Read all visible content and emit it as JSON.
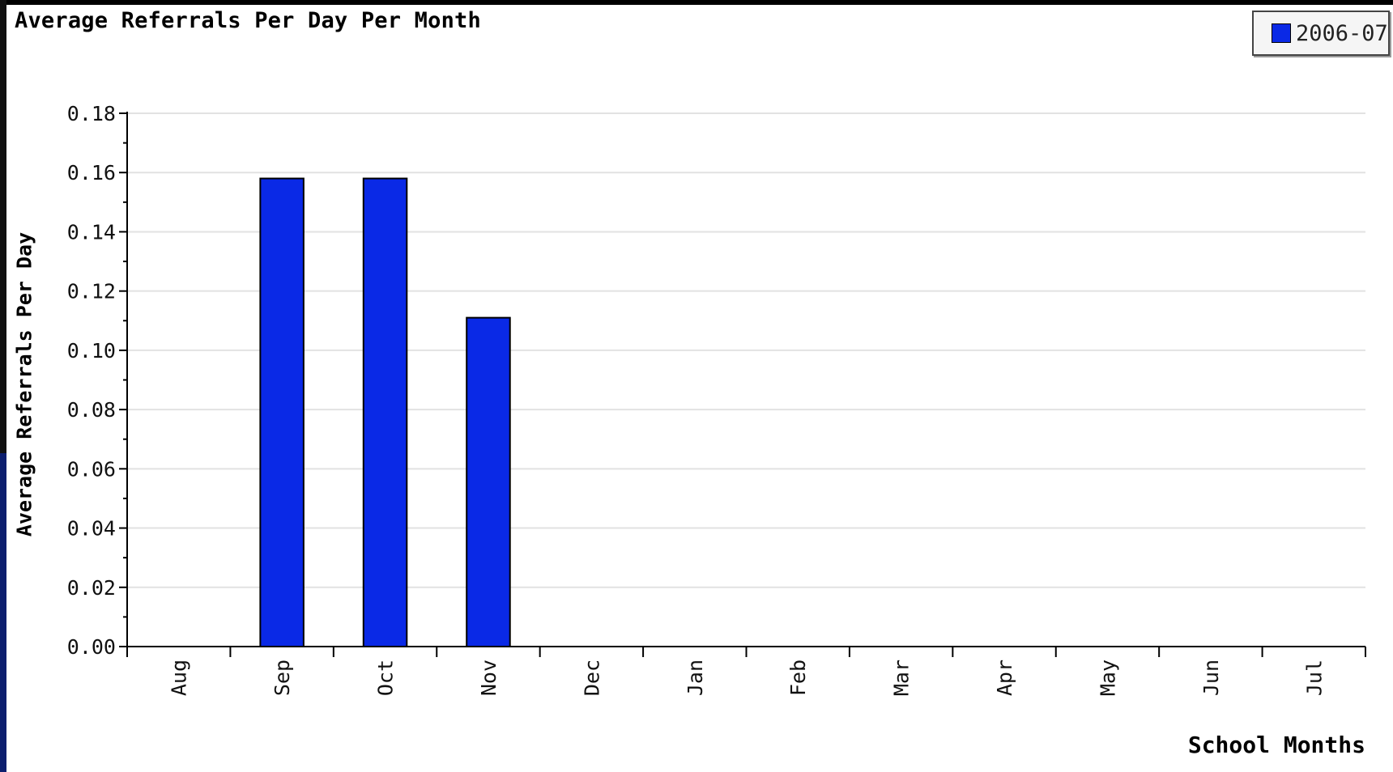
{
  "chart_data": {
    "type": "bar",
    "title": "Average Referrals Per Day Per Month",
    "xlabel": "School Months",
    "ylabel": "Average Referrals Per Day",
    "categories": [
      "Aug",
      "Sep",
      "Oct",
      "Nov",
      "Dec",
      "Jan",
      "Feb",
      "Mar",
      "Apr",
      "May",
      "Jun",
      "Jul"
    ],
    "series": [
      {
        "name": "2006-07",
        "values": [
          0,
          0.158,
          0.158,
          0.111,
          0,
          0,
          0,
          0,
          0,
          0,
          0,
          0
        ],
        "color": "#0a29e6"
      }
    ],
    "ylim": [
      0,
      0.18
    ],
    "yticks": [
      "0.00",
      "0.02",
      "0.04",
      "0.06",
      "0.08",
      "0.10",
      "0.12",
      "0.14",
      "0.16",
      "0.18"
    ],
    "grid": true,
    "legend_position": "top-right"
  }
}
